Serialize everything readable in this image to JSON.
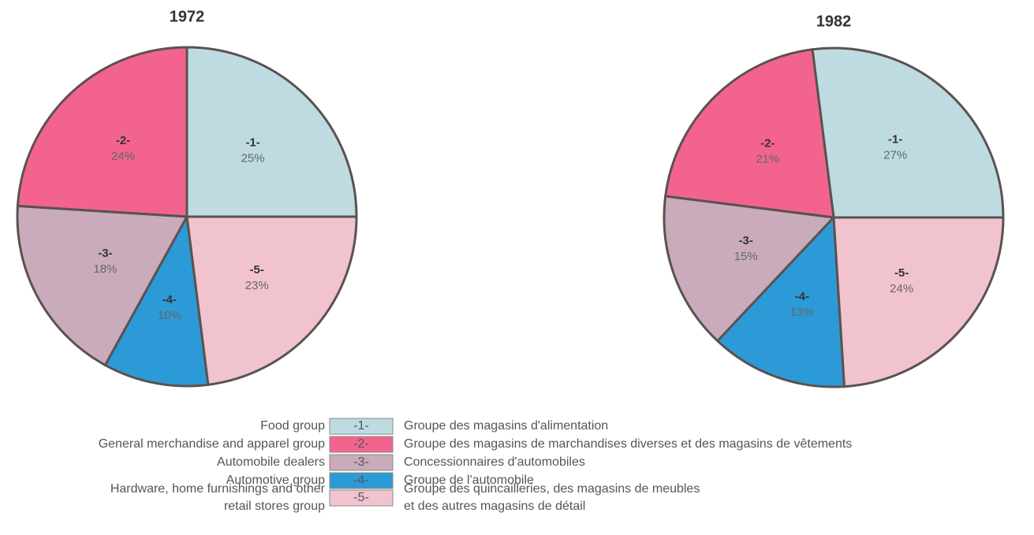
{
  "chart_data": [
    {
      "type": "pie",
      "title": "1972",
      "categories": [
        "-1-",
        "-2-",
        "-3-",
        "-4-",
        "-5-"
      ],
      "values": [
        25,
        24,
        18,
        10,
        23
      ],
      "value_labels": [
        "25%",
        "24%",
        "18%",
        "10%",
        "23%"
      ],
      "colors": [
        "#bfdbe2",
        "#f2648e",
        "#c9abbb",
        "#2c9ad6",
        "#f1c3cf"
      ]
    },
    {
      "type": "pie",
      "title": "1982",
      "categories": [
        "-1-",
        "-2-",
        "-3-",
        "-4-",
        "-5-"
      ],
      "values": [
        27,
        21,
        15,
        13,
        24
      ],
      "value_labels": [
        "27%",
        "21%",
        "15%",
        "13%",
        "24%"
      ],
      "colors": [
        "#bfdbe2",
        "#f2648e",
        "#c9abbb",
        "#2c9ad6",
        "#f1c3cf"
      ]
    }
  ],
  "legend": {
    "entries": [
      {
        "code": "-1-",
        "english": [
          "Food group"
        ],
        "french": [
          "Groupe des magasins d'alimentation"
        ]
      },
      {
        "code": "-2-",
        "english": [
          "General merchandise and apparel group"
        ],
        "french": [
          "Groupe des magasins de marchandises diverses et des magasins de vêtements"
        ]
      },
      {
        "code": "-3-",
        "english": [
          "Automobile dealers"
        ],
        "french": [
          "Concessionnaires d'automobiles"
        ]
      },
      {
        "code": "-4-",
        "english": [
          "Automotive group"
        ],
        "french": [
          "Groupe de l'automobile"
        ]
      },
      {
        "code": "-5-",
        "english": [
          "Hardware, home furnishings and other",
          "retail stores group"
        ],
        "french": [
          "Groupe des quincailleries, des magasins de meubles",
          "et des autres magasins de détail"
        ]
      }
    ]
  }
}
